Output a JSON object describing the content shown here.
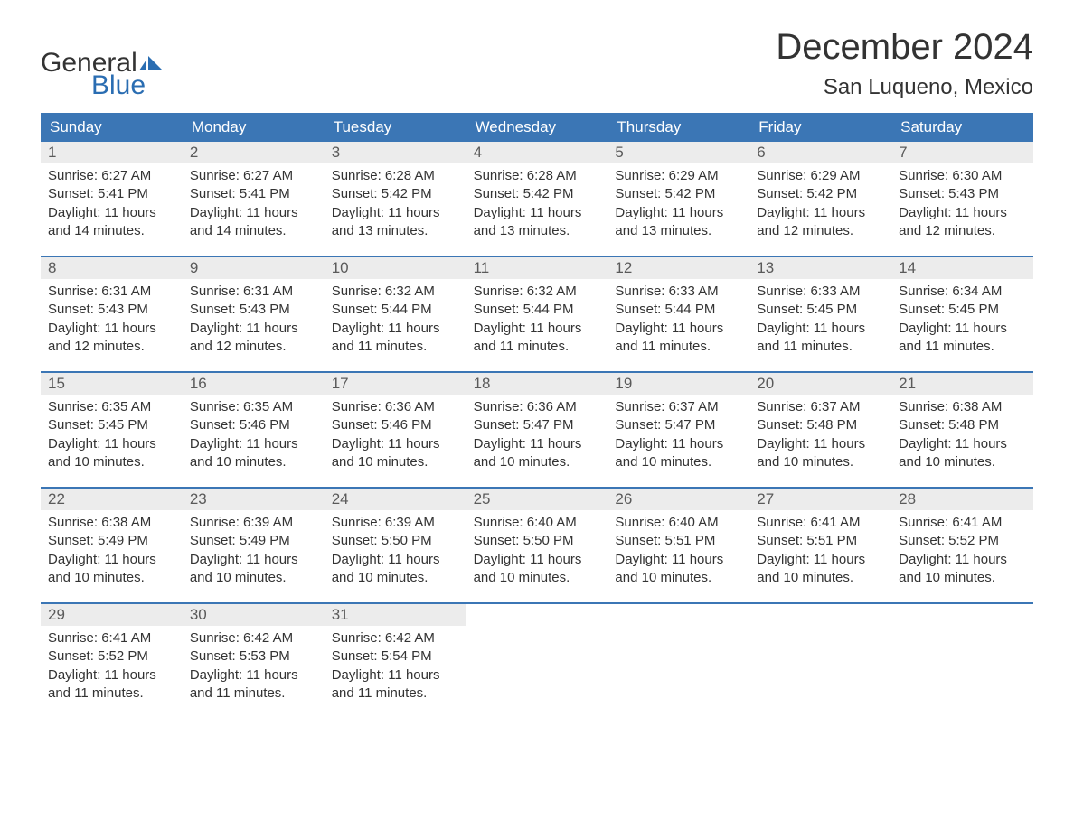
{
  "logo": {
    "word1": "General",
    "word2": "Blue"
  },
  "title": "December 2024",
  "location": "San Luqueno, Mexico",
  "colors": {
    "header_bg": "#3b76b5",
    "header_text": "#ffffff",
    "daynum_bg": "#ececec",
    "daynum_text": "#5a5a5a",
    "body_text": "#333333",
    "week_border": "#3b76b5",
    "logo_blue": "#2a6db2"
  },
  "day_names": [
    "Sunday",
    "Monday",
    "Tuesday",
    "Wednesday",
    "Thursday",
    "Friday",
    "Saturday"
  ],
  "days": [
    {
      "n": 1,
      "sunrise": "6:27 AM",
      "sunset": "5:41 PM",
      "daylight": "11 hours and 14 minutes."
    },
    {
      "n": 2,
      "sunrise": "6:27 AM",
      "sunset": "5:41 PM",
      "daylight": "11 hours and 14 minutes."
    },
    {
      "n": 3,
      "sunrise": "6:28 AM",
      "sunset": "5:42 PM",
      "daylight": "11 hours and 13 minutes."
    },
    {
      "n": 4,
      "sunrise": "6:28 AM",
      "sunset": "5:42 PM",
      "daylight": "11 hours and 13 minutes."
    },
    {
      "n": 5,
      "sunrise": "6:29 AM",
      "sunset": "5:42 PM",
      "daylight": "11 hours and 13 minutes."
    },
    {
      "n": 6,
      "sunrise": "6:29 AM",
      "sunset": "5:42 PM",
      "daylight": "11 hours and 12 minutes."
    },
    {
      "n": 7,
      "sunrise": "6:30 AM",
      "sunset": "5:43 PM",
      "daylight": "11 hours and 12 minutes."
    },
    {
      "n": 8,
      "sunrise": "6:31 AM",
      "sunset": "5:43 PM",
      "daylight": "11 hours and 12 minutes."
    },
    {
      "n": 9,
      "sunrise": "6:31 AM",
      "sunset": "5:43 PM",
      "daylight": "11 hours and 12 minutes."
    },
    {
      "n": 10,
      "sunrise": "6:32 AM",
      "sunset": "5:44 PM",
      "daylight": "11 hours and 11 minutes."
    },
    {
      "n": 11,
      "sunrise": "6:32 AM",
      "sunset": "5:44 PM",
      "daylight": "11 hours and 11 minutes."
    },
    {
      "n": 12,
      "sunrise": "6:33 AM",
      "sunset": "5:44 PM",
      "daylight": "11 hours and 11 minutes."
    },
    {
      "n": 13,
      "sunrise": "6:33 AM",
      "sunset": "5:45 PM",
      "daylight": "11 hours and 11 minutes."
    },
    {
      "n": 14,
      "sunrise": "6:34 AM",
      "sunset": "5:45 PM",
      "daylight": "11 hours and 11 minutes."
    },
    {
      "n": 15,
      "sunrise": "6:35 AM",
      "sunset": "5:45 PM",
      "daylight": "11 hours and 10 minutes."
    },
    {
      "n": 16,
      "sunrise": "6:35 AM",
      "sunset": "5:46 PM",
      "daylight": "11 hours and 10 minutes."
    },
    {
      "n": 17,
      "sunrise": "6:36 AM",
      "sunset": "5:46 PM",
      "daylight": "11 hours and 10 minutes."
    },
    {
      "n": 18,
      "sunrise": "6:36 AM",
      "sunset": "5:47 PM",
      "daylight": "11 hours and 10 minutes."
    },
    {
      "n": 19,
      "sunrise": "6:37 AM",
      "sunset": "5:47 PM",
      "daylight": "11 hours and 10 minutes."
    },
    {
      "n": 20,
      "sunrise": "6:37 AM",
      "sunset": "5:48 PM",
      "daylight": "11 hours and 10 minutes."
    },
    {
      "n": 21,
      "sunrise": "6:38 AM",
      "sunset": "5:48 PM",
      "daylight": "11 hours and 10 minutes."
    },
    {
      "n": 22,
      "sunrise": "6:38 AM",
      "sunset": "5:49 PM",
      "daylight": "11 hours and 10 minutes."
    },
    {
      "n": 23,
      "sunrise": "6:39 AM",
      "sunset": "5:49 PM",
      "daylight": "11 hours and 10 minutes."
    },
    {
      "n": 24,
      "sunrise": "6:39 AM",
      "sunset": "5:50 PM",
      "daylight": "11 hours and 10 minutes."
    },
    {
      "n": 25,
      "sunrise": "6:40 AM",
      "sunset": "5:50 PM",
      "daylight": "11 hours and 10 minutes."
    },
    {
      "n": 26,
      "sunrise": "6:40 AM",
      "sunset": "5:51 PM",
      "daylight": "11 hours and 10 minutes."
    },
    {
      "n": 27,
      "sunrise": "6:41 AM",
      "sunset": "5:51 PM",
      "daylight": "11 hours and 10 minutes."
    },
    {
      "n": 28,
      "sunrise": "6:41 AM",
      "sunset": "5:52 PM",
      "daylight": "11 hours and 10 minutes."
    },
    {
      "n": 29,
      "sunrise": "6:41 AM",
      "sunset": "5:52 PM",
      "daylight": "11 hours and 11 minutes."
    },
    {
      "n": 30,
      "sunrise": "6:42 AM",
      "sunset": "5:53 PM",
      "daylight": "11 hours and 11 minutes."
    },
    {
      "n": 31,
      "sunrise": "6:42 AM",
      "sunset": "5:54 PM",
      "daylight": "11 hours and 11 minutes."
    }
  ],
  "labels": {
    "sunrise_prefix": "Sunrise: ",
    "sunset_prefix": "Sunset: ",
    "daylight_prefix": "Daylight: "
  },
  "layout": {
    "first_day_column": 0,
    "total_cells": 35
  }
}
